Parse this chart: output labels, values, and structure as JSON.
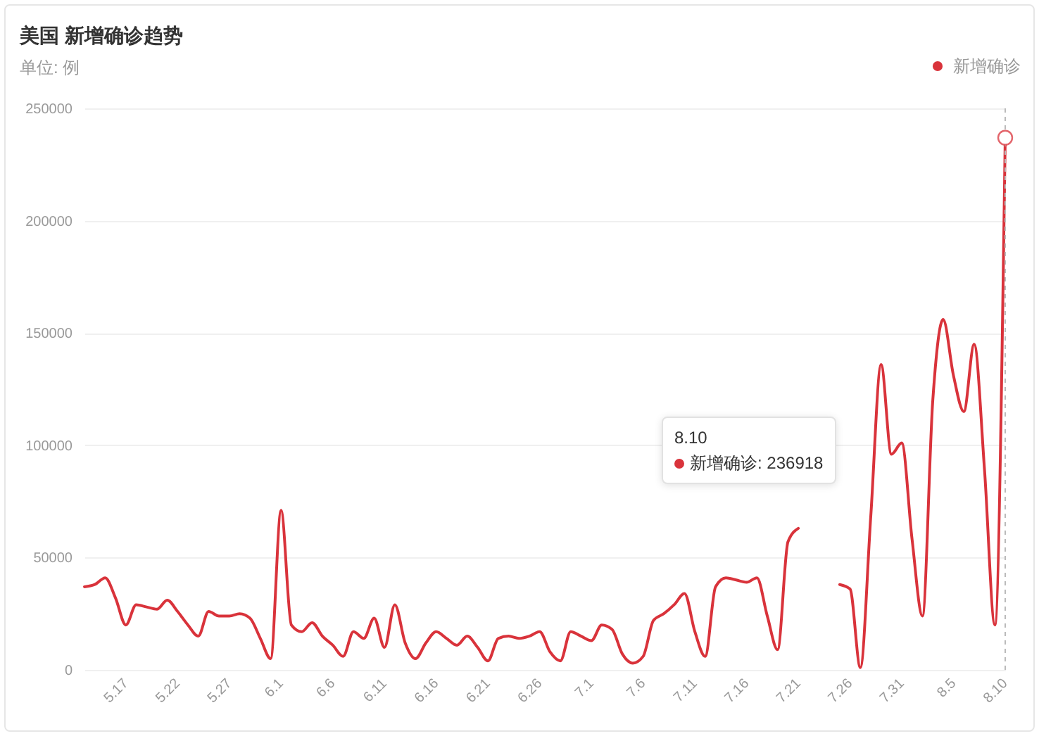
{
  "chart_data": {
    "type": "line",
    "title": "美国 新增确诊趋势",
    "subtitle": "单位: 例",
    "x": [
      "--05-13",
      "--05-14",
      "--05-15",
      "--05-16",
      "--05-17",
      "--05-18",
      "--05-19",
      "--05-20",
      "--05-21",
      "--05-22",
      "--05-23",
      "--05-24",
      "--05-25",
      "--05-26",
      "--05-27",
      "--05-28",
      "--05-29",
      "--05-30",
      "--05-31",
      "--06-01",
      "--06-02",
      "--06-03",
      "--06-04",
      "--06-05",
      "--06-06",
      "--06-07",
      "--06-08",
      "--06-09",
      "--06-10",
      "--06-11",
      "--06-12",
      "--06-13",
      "--06-14",
      "--06-15",
      "--06-16",
      "--06-17",
      "--06-18",
      "--06-19",
      "--06-20",
      "--06-21",
      "--06-22",
      "--06-23",
      "--06-24",
      "--06-25",
      "--06-26",
      "--06-27",
      "--06-28",
      "--06-29",
      "--06-30",
      "--07-01",
      "--07-02",
      "--07-03",
      "--07-04",
      "--07-05",
      "--07-06",
      "--07-07",
      "--07-08",
      "--07-09",
      "--07-10",
      "--07-11",
      "--07-12",
      "--07-13",
      "--07-14",
      "--07-15",
      "--07-16",
      "--07-17",
      "--07-18",
      "--07-19",
      "--07-20",
      "--07-21",
      "--07-22",
      "--07-23",
      "--07-24",
      "--07-25",
      "--07-26",
      "--07-27",
      "--07-28",
      "--07-29",
      "--07-30",
      "--07-31",
      "--08-01",
      "--08-02",
      "--08-03",
      "--08-04",
      "--08-05",
      "--08-06",
      "--08-07",
      "--08-08",
      "--08-09",
      "--08-10"
    ],
    "series": [
      {
        "name": "新增确诊",
        "color": "#d9333b",
        "values": [
          37000,
          38000,
          41000,
          32000,
          20000,
          29000,
          28000,
          27000,
          31000,
          26000,
          20000,
          15000,
          26000,
          24000,
          24000,
          25000,
          23000,
          14000,
          5000,
          71000,
          20000,
          17000,
          21000,
          15000,
          11000,
          6000,
          17000,
          14000,
          23000,
          10000,
          29000,
          12000,
          5000,
          12000,
          17000,
          14000,
          11000,
          15000,
          10000,
          4000,
          14000,
          15000,
          14000,
          15000,
          17000,
          8000,
          4000,
          17000,
          15000,
          13000,
          20000,
          18000,
          7000,
          3000,
          6000,
          22000,
          25000,
          29000,
          34000,
          17000,
          6000,
          37000,
          41000,
          40000,
          39000,
          41000,
          24000,
          9000,
          57000,
          63000,
          null,
          null,
          null,
          38000,
          36000,
          1000,
          68000,
          136000,
          96000,
          101000,
          58000,
          24000,
          120000,
          156000,
          131000,
          115000,
          145000,
          89000,
          20000,
          236918
        ]
      }
    ],
    "xlim": [
      "--05-13",
      "--08-10"
    ],
    "xticks": [
      {
        "value": "--05-17",
        "label": "5.17"
      },
      {
        "value": "--05-22",
        "label": "5.22"
      },
      {
        "value": "--05-27",
        "label": "5.27"
      },
      {
        "value": "--06-01",
        "label": "6.1"
      },
      {
        "value": "--06-06",
        "label": "6.6"
      },
      {
        "value": "--06-11",
        "label": "6.11"
      },
      {
        "value": "--06-16",
        "label": "6.16"
      },
      {
        "value": "--06-21",
        "label": "6.21"
      },
      {
        "value": "--06-26",
        "label": "6.26"
      },
      {
        "value": "--07-01",
        "label": "7.1"
      },
      {
        "value": "--07-06",
        "label": "7.6"
      },
      {
        "value": "--07-11",
        "label": "7.11"
      },
      {
        "value": "--07-16",
        "label": "7.16"
      },
      {
        "value": "--07-21",
        "label": "7.21"
      },
      {
        "value": "--07-26",
        "label": "7.26"
      },
      {
        "value": "--07-31",
        "label": "7.31"
      },
      {
        "value": "--08-05",
        "label": "8.5"
      },
      {
        "value": "--08-10",
        "label": "8.10"
      }
    ],
    "ylim": [
      0,
      250000
    ],
    "yticks": [
      0,
      50000,
      100000,
      150000,
      200000,
      250000
    ],
    "grid": "y",
    "legend": "top right",
    "ref_lines": [
      {
        "axis": "x",
        "value": "--08-10",
        "color": "#bbbbbb",
        "line_style": "dashed"
      }
    ],
    "annotations": [
      "8.10",
      "新增确诊: 236918"
    ]
  }
}
